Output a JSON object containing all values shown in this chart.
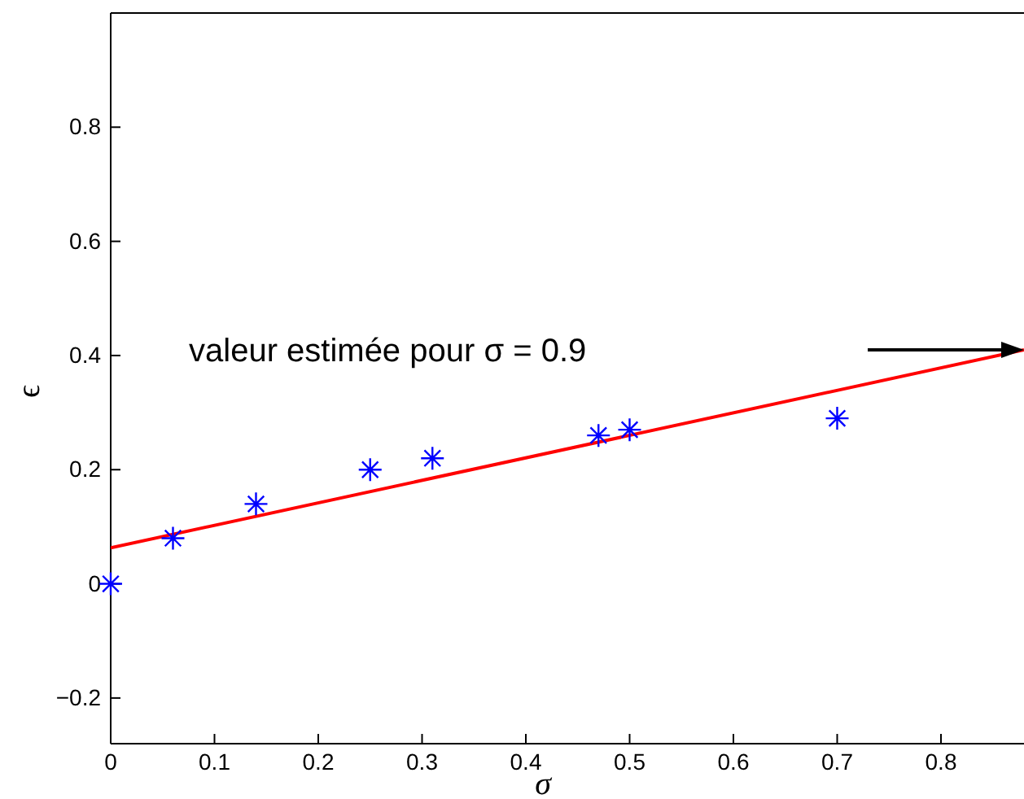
{
  "chart_data": {
    "type": "scatter",
    "xlabel": "σ",
    "ylabel": "ϵ",
    "xlim": [
      0,
      0.88
    ],
    "ylim": [
      -0.28,
      1
    ],
    "xticks": [
      0,
      0.1,
      0.2,
      0.3,
      0.4,
      0.5,
      0.6,
      0.7,
      0.8
    ],
    "yticks": [
      -0.2,
      0,
      0.2,
      0.4,
      0.6,
      0.8
    ],
    "grid": false,
    "series": [
      {
        "type": "scatter",
        "color": "#0000ff",
        "marker": "cross",
        "x": [
          0,
          0.06,
          0.14,
          0.25,
          0.31,
          0.47,
          0.5,
          0.7
        ],
        "values": [
          0,
          0.08,
          0.14,
          0.2,
          0.22,
          0.26,
          0.27,
          0.29
        ]
      },
      {
        "type": "line",
        "color": "#ff0000",
        "line_style": "solid",
        "marker": "none",
        "x": [
          0,
          0.88
        ],
        "values": [
          0.063,
          0.41
        ]
      }
    ],
    "annotations": [
      "valeur estimée pour σ = 0.9"
    ]
  }
}
